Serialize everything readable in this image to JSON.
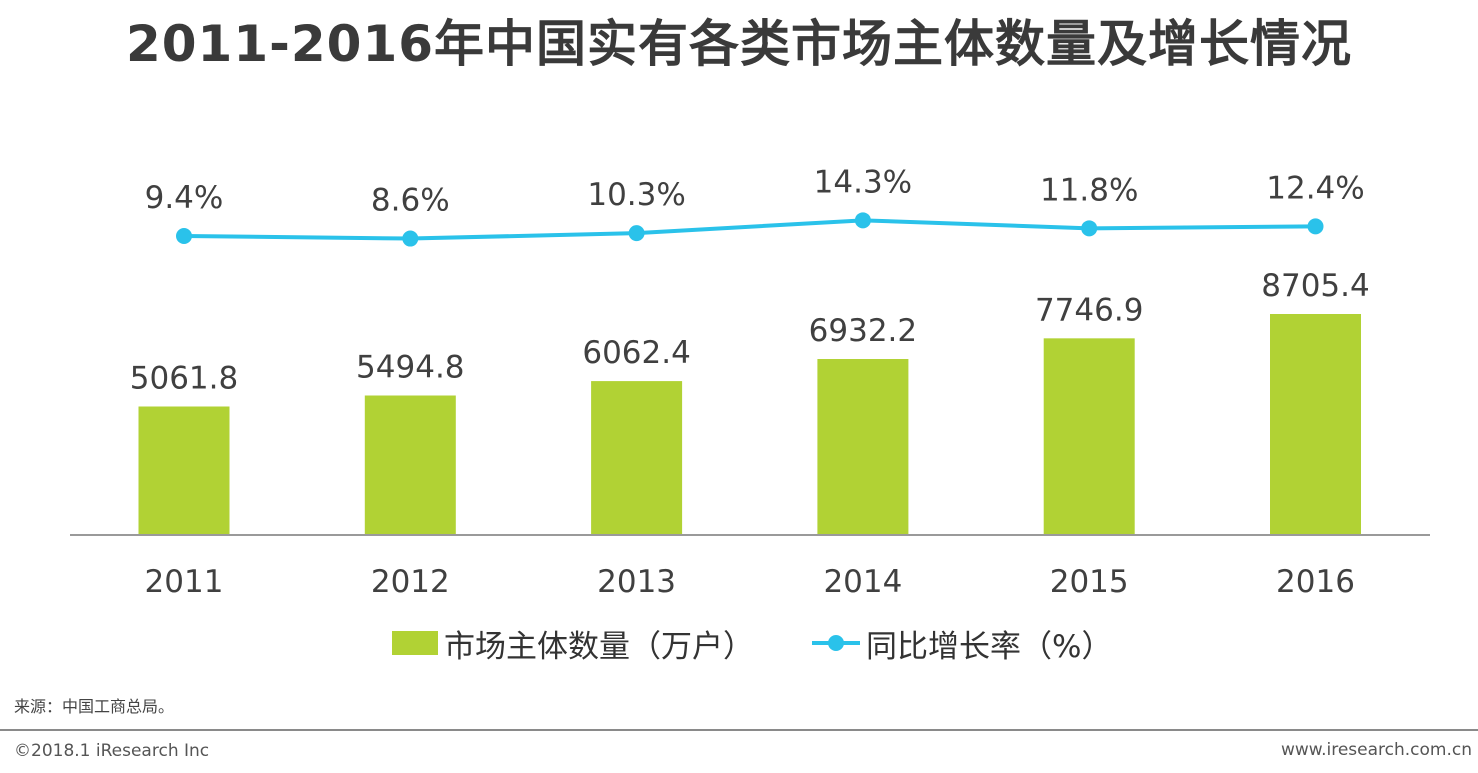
{
  "title": "2011-2016年中国实有各类市场主体数量及增长情况",
  "chart_data": {
    "type": "bar",
    "categories": [
      "2011",
      "2012",
      "2013",
      "2014",
      "2015",
      "2016"
    ],
    "series": [
      {
        "name": "市场主体数量（万户）",
        "kind": "bar",
        "values": [
          5061.8,
          5494.8,
          6062.4,
          6932.2,
          7746.9,
          8705.4
        ],
        "labels": [
          "5061.8",
          "5494.8",
          "6062.4",
          "6932.2",
          "7746.9",
          "8705.4"
        ],
        "color": "#b1d234"
      },
      {
        "name": "同比增长率（%）",
        "kind": "line",
        "values": [
          9.4,
          8.6,
          10.3,
          14.3,
          11.8,
          12.4
        ],
        "labels": [
          "9.4%",
          "8.6%",
          "10.3%",
          "14.3%",
          "11.8%",
          "12.4%"
        ],
        "color": "#2ac2ea"
      }
    ],
    "title": "2011-2016年中国实有各类市场主体数量及增长情况",
    "xlabel": "",
    "ylabel": "",
    "grid": false,
    "legend": "bottom"
  },
  "legend": {
    "bar_label": "市场主体数量（万户）",
    "line_label": "同比增长率（%）"
  },
  "source": "来源：中国工商总局。",
  "copyright": "©2018.1 iResearch Inc",
  "website": "www.iresearch.com.cn"
}
